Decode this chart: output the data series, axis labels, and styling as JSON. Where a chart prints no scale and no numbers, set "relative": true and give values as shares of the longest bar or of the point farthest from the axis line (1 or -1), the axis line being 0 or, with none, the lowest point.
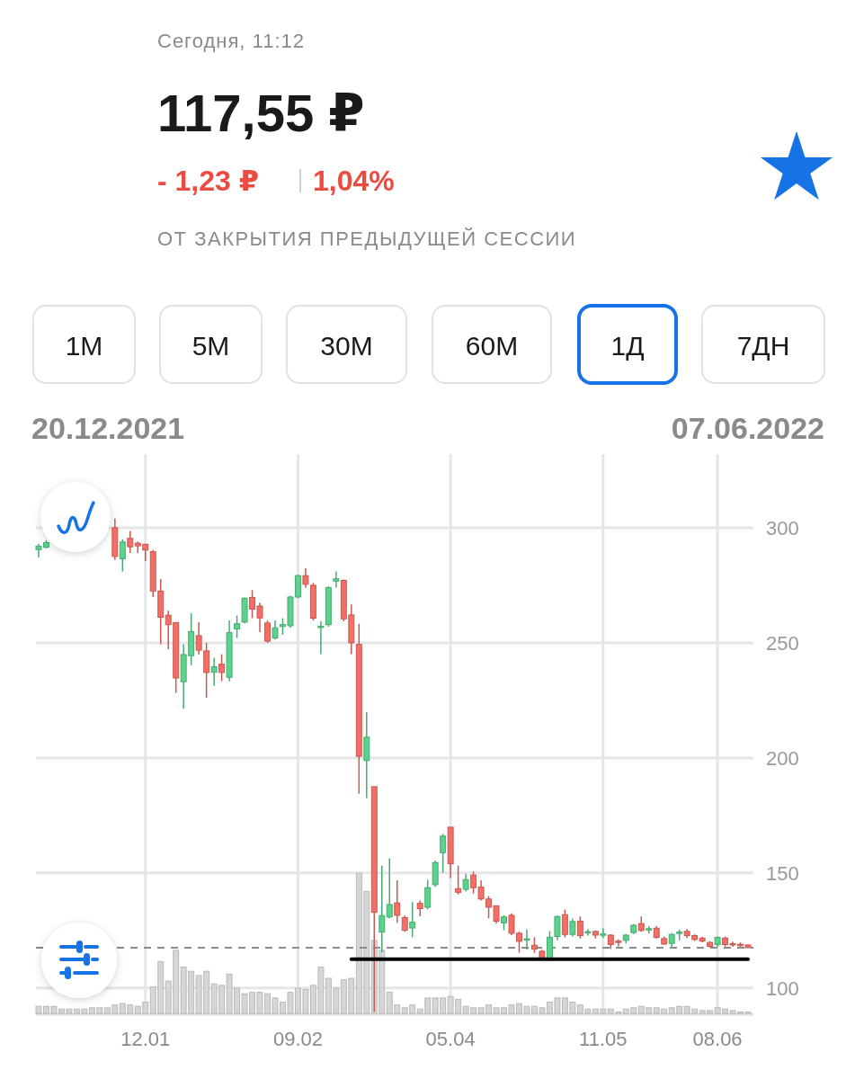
{
  "chart_data": [
    {
      "type": "candlestick",
      "title": "117,55 ₽",
      "subtitle": "Сегодня, 11:12",
      "annotations": [
        "- 1,23 ₽",
        "1,04%",
        "ОТ ЗАКРЫТИЯ ПРЕДЫДУЩЕЙ СЕССИИ",
        "1М",
        "5М",
        "30М",
        "60М",
        "1Д",
        "7ДН",
        "20.12.2021",
        "07.06.2022"
      ],
      "categories": [
        null,
        null,
        null,
        null,
        null,
        null,
        null,
        null,
        null,
        null,
        null,
        null,
        null,
        null,
        "12.01",
        null,
        null,
        null,
        null,
        null,
        null,
        null,
        null,
        null,
        null,
        null,
        null,
        null,
        null,
        null,
        null,
        null,
        null,
        null,
        "09.02",
        null,
        null,
        null,
        null,
        null,
        null,
        null,
        null,
        null,
        null,
        null,
        null,
        null,
        null,
        null,
        null,
        null,
        null,
        null,
        "05.04",
        null,
        null,
        null,
        null,
        null,
        null,
        null,
        null,
        null,
        null,
        null,
        null,
        null,
        null,
        null,
        null,
        null,
        null,
        null,
        "11.05",
        null,
        null,
        null,
        null,
        null,
        null,
        null,
        null,
        null,
        null,
        null,
        null,
        null,
        null,
        "08.06",
        null,
        null,
        null,
        null
      ],
      "ohlc": [
        [
          290.5,
          293,
          287,
          292
        ],
        [
          291.5,
          294.5,
          291,
          293.5
        ],
        null,
        null,
        null,
        null,
        null,
        null,
        null,
        null,
        [
          300,
          304,
          286,
          287.5
        ],
        [
          286.5,
          295,
          281,
          293.8
        ],
        [
          295.4,
          298.6,
          289,
          291.7
        ],
        [
          293.3,
          294,
          289,
          292.1
        ],
        [
          292.8,
          293,
          285.4,
          290.3
        ],
        [
          289.6,
          290.3,
          269.9,
          272.5
        ],
        [
          272.5,
          277.8,
          249.3,
          261.1
        ],
        [
          262,
          263.9,
          247.2,
          257.9
        ],
        [
          258.8,
          259,
          228.2,
          234.7
        ],
        [
          233.1,
          249.3,
          221.3,
          244.9
        ],
        [
          244.4,
          262.9,
          240.3,
          254.9
        ],
        [
          253.1,
          259,
          245,
          246.8
        ],
        [
          246.5,
          250,
          226.1,
          237.1
        ],
        [
          237.2,
          243.5,
          231.3,
          239.6
        ],
        [
          240.7,
          245,
          233.3,
          237.1
        ],
        [
          235,
          259.7,
          233.3,
          254.4
        ],
        [
          256,
          261.8,
          252.1,
          258.3
        ],
        [
          259,
          269.7,
          258.5,
          269.4
        ],
        [
          269.7,
          272.9,
          260.7,
          264.6
        ],
        [
          266,
          267.4,
          254.6,
          260.8
        ],
        [
          258.6,
          259.7,
          250,
          250.7
        ],
        [
          252.1,
          259.7,
          251.4,
          256.5
        ],
        [
          257.1,
          260.7,
          253.5,
          257.9
        ],
        [
          257.4,
          270.5,
          256.5,
          269.9
        ],
        [
          269.9,
          279.6,
          269.4,
          279.2
        ],
        [
          279.2,
          282.4,
          273.9,
          275.4
        ],
        [
          275,
          276,
          259.7,
          260.7
        ],
        [
          256.8,
          259.3,
          245.1,
          257.2
        ],
        [
          257.9,
          274.5,
          257,
          274
        ],
        [
          276.8,
          281,
          274,
          277.8
        ],
        [
          277.1,
          277.5,
          259.4,
          260.4
        ],
        [
          262.1,
          266.7,
          245.1,
          250
        ],
        [
          249.3,
          258.3,
          184.4,
          200.7
        ],
        [
          198.9,
          219.9,
          182.6,
          209
        ],
        [
          187.5,
          187.5,
          89.6,
          132.9
        ],
        [
          124.3,
          153.2,
          115.5,
          131.5
        ],
        [
          130.9,
          156.3,
          130.3,
          136.3
        ],
        [
          137,
          146.8,
          128.3,
          131.6
        ],
        [
          130.6,
          131.5,
          124.5,
          125.1
        ],
        [
          126.1,
          137.4,
          122.1,
          128.6
        ],
        [
          136.8,
          138,
          131.2,
          134.5
        ],
        [
          135.1,
          147.1,
          134.2,
          143.6
        ],
        [
          144.9,
          155.3,
          144,
          154.5
        ],
        [
          158.8,
          167,
          150.1,
          166
        ],
        [
          169.9,
          169.9,
          147.8,
          154
        ],
        [
          143.2,
          153.2,
          140.6,
          141.6
        ],
        [
          142.9,
          149.7,
          142,
          147.1
        ],
        [
          149.1,
          150.6,
          141,
          143.6
        ],
        [
          143.9,
          146.8,
          138,
          138.7
        ],
        [
          138.7,
          140,
          130.3,
          135.1
        ],
        [
          135.7,
          136,
          128,
          129
        ],
        [
          128.3,
          131.6,
          125.1,
          130.9
        ],
        [
          131.6,
          132.5,
          123,
          123.8
        ],
        [
          123.8,
          124.5,
          115.3,
          120.3
        ],
        [
          121,
          125.5,
          116.6,
          121.4
        ],
        [
          118.6,
          122.1,
          115.3,
          116.9
        ],
        [
          116,
          116.5,
          112,
          112.7
        ],
        [
          112.7,
          124.7,
          112,
          122.1
        ],
        [
          122.4,
          131.5,
          120.7,
          131.1
        ],
        [
          131.9,
          134.1,
          122,
          123.3
        ],
        [
          123.3,
          130.2,
          122.4,
          128.9
        ],
        [
          129.1,
          131.1,
          121.5,
          122.8
        ],
        [
          124.1,
          125.6,
          122.8,
          124.5
        ],
        [
          124.6,
          125,
          121.5,
          123
        ],
        [
          123.1,
          125.9,
          121.7,
          123.5
        ],
        [
          123,
          123.3,
          117,
          118.9
        ],
        [
          120.4,
          121.1,
          118.1,
          120
        ],
        [
          120.7,
          123.5,
          119.4,
          123
        ],
        [
          124.1,
          127.8,
          123.5,
          127.3
        ],
        [
          128,
          131.1,
          124.5,
          125
        ],
        [
          125.4,
          126.9,
          123.7,
          125.8
        ],
        [
          126,
          126.9,
          121.5,
          122
        ],
        [
          121.5,
          122.4,
          118.8,
          119.1
        ],
        [
          119.4,
          124,
          117.2,
          123.3
        ],
        [
          123.9,
          125.4,
          120.7,
          124.3
        ],
        [
          124.6,
          125.6,
          121.7,
          122.8
        ],
        [
          122.8,
          123.3,
          120.4,
          121.1
        ],
        [
          121.7,
          122.3,
          119.9,
          120.4
        ],
        [
          119.8,
          120.4,
          117.6,
          118.1
        ],
        [
          118.9,
          122.4,
          117.8,
          122
        ],
        [
          121.7,
          122.4,
          118,
          118.9
        ],
        [
          119.3,
          120.2,
          118,
          119
        ],
        [
          119,
          119.8,
          118,
          118.8
        ],
        [
          118.7,
          119,
          117.5,
          117.55
        ]
      ],
      "colors": [
        "#5ad38c",
        "#5ad38c",
        null,
        null,
        null,
        null,
        null,
        null,
        null,
        null,
        "#f56e66",
        "#5ad38c",
        "#f56e66",
        "#f56e66",
        "#f56e66",
        "#f56e66",
        "#f56e66",
        "#f56e66",
        "#f56e66",
        "#5ad38c",
        "#5ad38c",
        "#f56e66",
        "#f56e66",
        "#5ad38c",
        "#f56e66",
        "#5ad38c",
        "#5ad38c",
        "#5ad38c",
        "#f56e66",
        "#f56e66",
        "#f56e66",
        "#5ad38c",
        "#5ad38c",
        "#5ad38c",
        "#5ad38c",
        "#f56e66",
        "#f56e66",
        "#5ad38c",
        "#5ad38c",
        "#5ad38c",
        "#f56e66",
        "#f56e66",
        "#f56e66",
        "#5ad38c",
        "#f56e66",
        "#5ad38c",
        "#5ad38c",
        "#f56e66",
        "#f56e66",
        "#5ad38c",
        "#f56e66",
        "#5ad38c",
        "#5ad38c",
        "#5ad38c",
        "#f56e66",
        "#f56e66",
        "#5ad38c",
        "#f56e66",
        "#f56e66",
        "#f56e66",
        "#f56e66",
        "#5ad38c",
        "#f56e66",
        "#f56e66",
        "#5ad38c",
        "#f56e66",
        "#f56e66",
        "#5ad38c",
        "#5ad38c",
        "#f56e66",
        "#5ad38c",
        "#f56e66",
        "#5ad38c",
        "#f56e66",
        "#5ad38c",
        "#f56e66",
        "#f56e66",
        "#5ad38c",
        "#5ad38c",
        "#f56e66",
        "#5ad38c",
        "#f56e66",
        "#f56e66",
        "#5ad38c",
        "#5ad38c",
        "#f56e66",
        "#f56e66",
        "#f56e66",
        "#f56e66",
        "#5ad38c",
        "#f56e66",
        "#f56e66",
        "#f56e66",
        "#f56e66"
      ],
      "series": [
        {
          "type": "line",
          "color": "#000000",
          "values": [
            null,
            null,
            null,
            null,
            null,
            null,
            null,
            null,
            null,
            null,
            null,
            null,
            null,
            null,
            null,
            null,
            null,
            null,
            null,
            null,
            null,
            null,
            null,
            null,
            null,
            null,
            null,
            null,
            null,
            null,
            null,
            null,
            null,
            null,
            null,
            null,
            null,
            null,
            null,
            null,
            null,
            112.5,
            112.5,
            112.5,
            112.5,
            112.5,
            112.5,
            112.5,
            112.5,
            112.5,
            112.5,
            112.5,
            112.5,
            112.5,
            112.5,
            112.5,
            112.5,
            112.5,
            112.5,
            112.5,
            112.5,
            112.5,
            112.5,
            112.5,
            112.5,
            112.5,
            112.5,
            112.5,
            112.5,
            112.5,
            112.5,
            112.5,
            112.5,
            112.5,
            112.5,
            112.5,
            112.5,
            112.5,
            112.5,
            112.5,
            112.5,
            112.5,
            112.5,
            112.5,
            112.5,
            112.5,
            112.5,
            112.5,
            112.5,
            112.5,
            112.5,
            112.5,
            112.5,
            112.5
          ]
        }
      ],
      "ref_lines": [
        {
          "axis": "y",
          "value": 117.55,
          "color": "#8c8c8c",
          "line_style": "dashed"
        }
      ],
      "ylim": [
        89,
        332
      ],
      "yticks": [
        100,
        150,
        200,
        250,
        300
      ],
      "tick_labels": "y",
      "grid": true
    },
    {
      "type": "bar",
      "relative": true,
      "categories": [
        null,
        null,
        null,
        null,
        null,
        null,
        null,
        null,
        null,
        null,
        null,
        null,
        null,
        null,
        "12.01",
        null,
        null,
        null,
        null,
        null,
        null,
        null,
        null,
        null,
        null,
        null,
        null,
        null,
        null,
        null,
        null,
        null,
        null,
        null,
        "09.02",
        null,
        null,
        null,
        null,
        null,
        null,
        null,
        null,
        null,
        null,
        null,
        null,
        null,
        null,
        null,
        null,
        null,
        null,
        null,
        "05.04",
        null,
        null,
        null,
        null,
        null,
        null,
        null,
        null,
        null,
        null,
        null,
        null,
        null,
        null,
        null,
        null,
        null,
        null,
        null,
        "11.05",
        null,
        null,
        null,
        null,
        null,
        null,
        null,
        null,
        null,
        null,
        null,
        null,
        null,
        null,
        "08.06",
        null,
        null,
        null,
        null
      ],
      "color": "#d6d6d6",
      "values": [
        0.05,
        0.05,
        0.05,
        0.03,
        0.03,
        0.03,
        0.03,
        0.04,
        0.04,
        0.04,
        0.06,
        0.07,
        0.06,
        0.05,
        0.08,
        0.19,
        0.37,
        0.23,
        0.45,
        0.33,
        0.3,
        0.27,
        0.3,
        0.21,
        0.2,
        0.28,
        0.18,
        0.14,
        0.15,
        0.15,
        0.14,
        0.11,
        0.08,
        0.15,
        0.18,
        0.17,
        0.2,
        0.33,
        0.25,
        0.18,
        0.24,
        0.25,
        1,
        0.87,
        0.52,
        0.45,
        0.15,
        0.06,
        0.04,
        0.06,
        0.03,
        0.11,
        0.11,
        0.11,
        0.12,
        0.1,
        0.05,
        0.04,
        0.04,
        0.06,
        0.04,
        0.04,
        0.06,
        0.07,
        0.05,
        0.05,
        0.04,
        0.08,
        0.11,
        0.11,
        0.08,
        0.06,
        0.03,
        0.03,
        0.03,
        0.03,
        0.01,
        0.03,
        0.04,
        0.05,
        0.04,
        0.04,
        0.03,
        0.04,
        0.05,
        0.05,
        0.03,
        0.02,
        0.02,
        0.04,
        0.03,
        0.02,
        0.01,
        0.01
      ]
    }
  ]
}
